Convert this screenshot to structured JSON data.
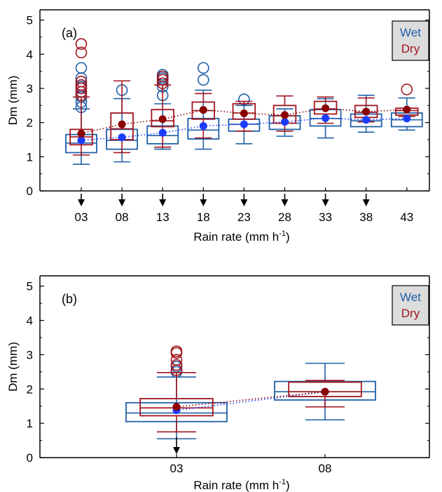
{
  "colors": {
    "wet": "#1f5fa8",
    "dry": "#a0141e",
    "wet_mean": "#1a3cff",
    "dry_mean": "#8b0000",
    "arrow": "#000000",
    "legend_bg": "#dcdcdc"
  },
  "chart_data": [
    {
      "type": "box",
      "panel_label": "(a)",
      "xlabel": "Rain rate (mm h",
      "xlabel_sup": "-1",
      "xlabel_close": ")",
      "ylabel": "Dm (mm)",
      "ylim": [
        0,
        5.3
      ],
      "yticks": [
        0,
        1,
        2,
        3,
        4,
        5
      ],
      "categories": [
        "03",
        "08",
        "13",
        "18",
        "23",
        "28",
        "33",
        "38",
        "43"
      ],
      "arrows": [
        "03",
        "08",
        "13",
        "18",
        "23",
        "28",
        "33",
        "38"
      ],
      "legend": {
        "items": [
          "Wet",
          "Dry"
        ],
        "position": "top-right"
      },
      "series": [
        {
          "name": "Wet",
          "boxes": [
            {
              "q1": 1.12,
              "median": 1.4,
              "q3": 1.65,
              "whisker_low": 0.78,
              "whisker_high": 2.4,
              "mean": 1.48,
              "outliers": [
                2.45,
                2.6,
                2.75,
                2.9,
                3.05,
                3.3,
                3.6
              ]
            },
            {
              "q1": 1.22,
              "median": 1.48,
              "q3": 1.8,
              "whisker_low": 0.85,
              "whisker_high": 2.7,
              "mean": 1.57,
              "outliers": [
                2.95
              ]
            },
            {
              "q1": 1.38,
              "median": 1.62,
              "q3": 1.9,
              "whisker_low": 1.22,
              "whisker_high": 2.55,
              "mean": 1.7,
              "outliers": [
                2.8,
                3.05,
                3.3,
                3.4
              ]
            },
            {
              "q1": 1.52,
              "median": 1.78,
              "q3": 2.12,
              "whisker_low": 1.22,
              "whisker_high": 2.95,
              "mean": 1.9,
              "outliers": [
                3.25,
                3.6
              ]
            },
            {
              "q1": 1.75,
              "median": 1.95,
              "q3": 2.1,
              "whisker_low": 1.38,
              "whisker_high": 2.5,
              "mean": 1.95,
              "outliers": [
                2.68
              ]
            },
            {
              "q1": 1.8,
              "median": 1.98,
              "q3": 2.2,
              "whisker_low": 1.6,
              "whisker_high": 2.4,
              "mean": 2.02,
              "outliers": []
            },
            {
              "q1": 1.9,
              "median": 2.12,
              "q3": 2.38,
              "whisker_low": 1.55,
              "whisker_high": 2.7,
              "mean": 2.13,
              "outliers": []
            },
            {
              "q1": 1.88,
              "median": 2.05,
              "q3": 2.25,
              "whisker_low": 1.72,
              "whisker_high": 2.8,
              "mean": 2.08,
              "outliers": []
            },
            {
              "q1": 1.88,
              "median": 2.08,
              "q3": 2.28,
              "whisker_low": 1.78,
              "whisker_high": 2.72,
              "mean": 2.12,
              "outliers": []
            }
          ]
        },
        {
          "name": "Dry",
          "boxes": [
            {
              "q1": 1.35,
              "median": 1.58,
              "q3": 1.8,
              "whisker_low": 1.05,
              "whisker_high": 2.75,
              "mean": 1.68,
              "outliers": [
                2.8,
                2.9,
                3.0,
                3.1,
                3.2,
                4.05,
                4.3
              ]
            },
            {
              "q1": 1.5,
              "median": 1.82,
              "q3": 2.28,
              "whisker_low": 1.12,
              "whisker_high": 3.22,
              "mean": 1.95,
              "outliers": []
            },
            {
              "q1": 1.88,
              "median": 2.05,
              "q3": 2.38,
              "whisker_low": 1.28,
              "whisker_high": 3.1,
              "mean": 2.1,
              "outliers": [
                3.15,
                3.25,
                3.35
              ]
            },
            {
              "q1": 2.1,
              "median": 2.35,
              "q3": 2.6,
              "whisker_low": 1.55,
              "whisker_high": 2.85,
              "mean": 2.37,
              "outliers": []
            },
            {
              "q1": 2.1,
              "median": 2.28,
              "q3": 2.55,
              "whisker_low": 1.75,
              "whisker_high": 2.62,
              "mean": 2.27,
              "outliers": []
            },
            {
              "q1": 1.98,
              "median": 2.2,
              "q3": 2.5,
              "whisker_low": 1.75,
              "whisker_high": 2.78,
              "mean": 2.22,
              "outliers": []
            },
            {
              "q1": 2.25,
              "median": 2.4,
              "q3": 2.62,
              "whisker_low": 1.98,
              "whisker_high": 2.75,
              "mean": 2.42,
              "outliers": []
            },
            {
              "q1": 2.15,
              "median": 2.3,
              "q3": 2.5,
              "whisker_low": 2.02,
              "whisker_high": 2.72,
              "mean": 2.32,
              "outliers": []
            },
            {
              "q1": 2.22,
              "median": 2.35,
              "q3": 2.42,
              "whisker_low": 2.18,
              "whisker_high": 2.42,
              "mean": 2.38,
              "outliers": [
                2.97
              ]
            }
          ]
        }
      ]
    },
    {
      "type": "box",
      "panel_label": "(b)",
      "xlabel": "Rain rate (mm h",
      "xlabel_sup": "-1",
      "xlabel_close": ")",
      "ylabel": "Dm (mm)",
      "ylim": [
        0,
        5.3
      ],
      "yticks": [
        0,
        1,
        2,
        3,
        4,
        5
      ],
      "categories": [
        "03",
        "08"
      ],
      "arrows": [
        "03"
      ],
      "legend": {
        "items": [
          "Wet",
          "Dry"
        ],
        "position": "top-right"
      },
      "series": [
        {
          "name": "Wet",
          "boxes": [
            {
              "q1": 1.05,
              "median": 1.3,
              "q3": 1.6,
              "whisker_low": 0.55,
              "whisker_high": 2.35,
              "mean": 1.38,
              "outliers": [
                2.5,
                2.65
              ]
            },
            {
              "q1": 1.68,
              "median": 1.92,
              "q3": 2.22,
              "whisker_low": 1.1,
              "whisker_high": 2.75,
              "mean": 1.92,
              "outliers": []
            }
          ]
        },
        {
          "name": "Dry",
          "boxes": [
            {
              "q1": 1.22,
              "median": 1.45,
              "q3": 1.72,
              "whisker_low": 0.75,
              "whisker_high": 2.48,
              "mean": 1.48,
              "outliers": [
                2.55,
                2.7,
                2.85,
                3.05,
                3.1
              ]
            },
            {
              "q1": 1.78,
              "median": 1.92,
              "q3": 2.2,
              "whisker_low": 1.48,
              "whisker_high": 2.25,
              "mean": 1.92,
              "outliers": []
            }
          ]
        }
      ]
    }
  ]
}
